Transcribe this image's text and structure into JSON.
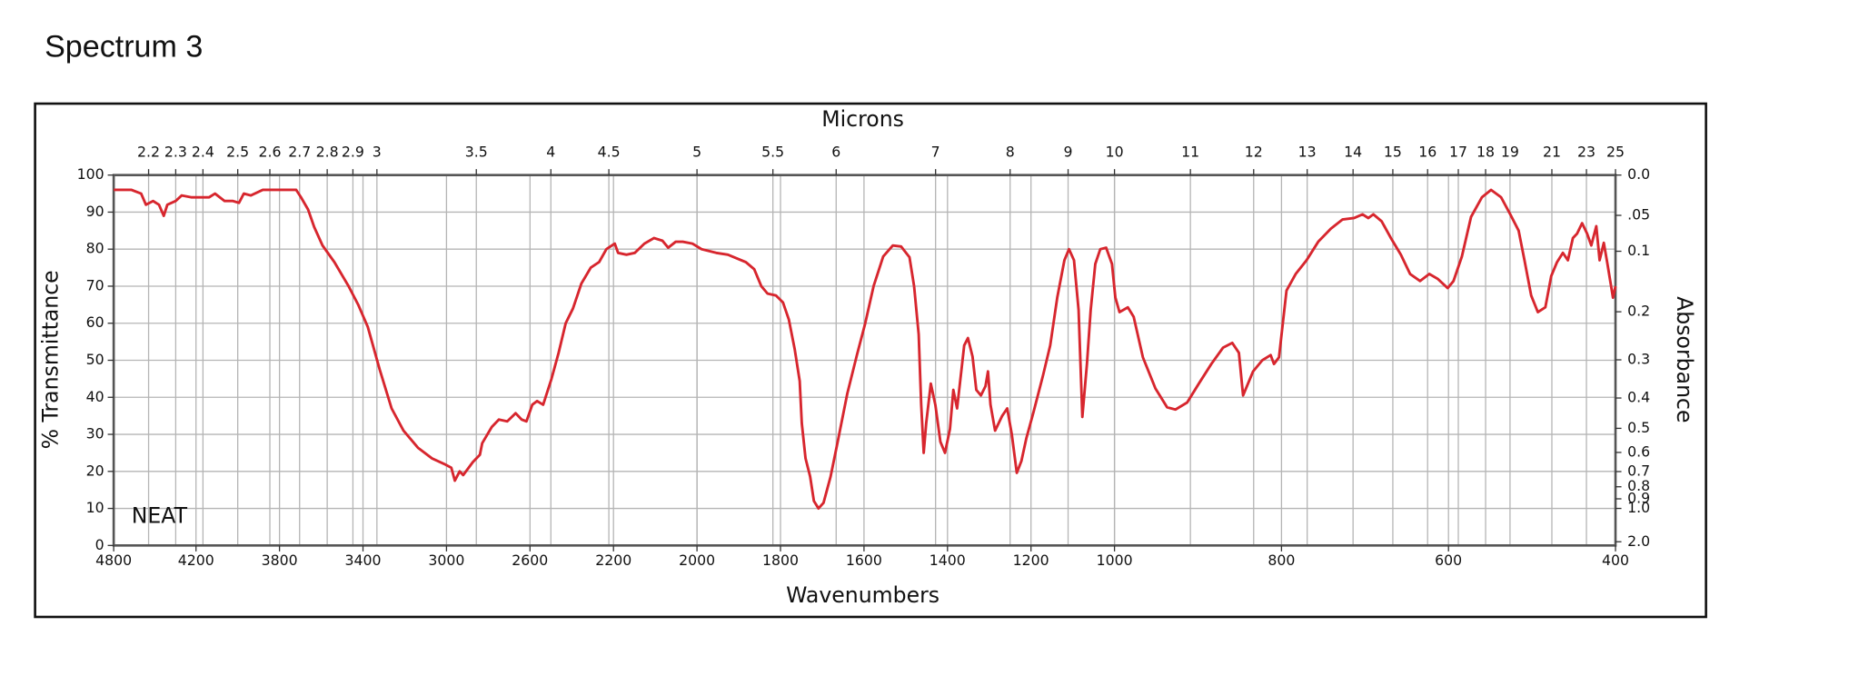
{
  "chart_data": {
    "type": "line",
    "title": "Spectrum 3",
    "annotation": "NEAT",
    "xlabel": "Wavenumbers",
    "x2label": "Microns",
    "ylabel": "% Transmittance",
    "y2label": "Absorbance",
    "xlim": [
      4800,
      400
    ],
    "xscale": "piecewise",
    "xbreaks": [
      4200,
      2200,
      1000
    ],
    "xticks": [
      4800,
      4200,
      3800,
      3400,
      3000,
      2600,
      2200,
      2000,
      1800,
      1600,
      1400,
      1200,
      1000,
      800,
      600,
      400
    ],
    "x2ticks": [
      2.2,
      2.3,
      2.4,
      2.5,
      2.6,
      2.7,
      2.8,
      2.9,
      3,
      3.5,
      4,
      4.5,
      5,
      5.5,
      6,
      7,
      8,
      9,
      10,
      11,
      12,
      13,
      14,
      15,
      16,
      17,
      18,
      19,
      21,
      23,
      25
    ],
    "ylim": [
      0,
      100
    ],
    "yticks": [
      0,
      10,
      20,
      30,
      40,
      50,
      60,
      70,
      80,
      90,
      100
    ],
    "y2scale": "absorbance",
    "y2ticks": [
      {
        "value": 0,
        "label": "0.0"
      },
      {
        "value": 0.05,
        "label": ".05"
      },
      0.1,
      0.2,
      0.3,
      0.4,
      0.5,
      0.6,
      0.7,
      0.8,
      0.9,
      {
        "value": 1,
        "label": "1.0"
      },
      {
        "value": 2,
        "label": "2.0"
      }
    ],
    "grid": true,
    "x": [
      4800,
      4670,
      4600,
      4565,
      4513,
      4470,
      4435,
      4409,
      4348,
      4304,
      4235,
      4137,
      4109,
      4063,
      4023,
      3994,
      3971,
      3937,
      3880,
      3794,
      3720,
      3697,
      3663,
      3634,
      3594,
      3537,
      3469,
      3423,
      3377,
      3320,
      3263,
      3206,
      3137,
      3069,
      3011,
      2977,
      2960,
      2937,
      2920,
      2874,
      2840,
      2829,
      2783,
      2749,
      2709,
      2669,
      2640,
      2617,
      2589,
      2566,
      2537,
      2497,
      2463,
      2429,
      2394,
      2354,
      2309,
      2269,
      2234,
      2197,
      2189,
      2169,
      2149,
      2126,
      2103,
      2083,
      2069,
      2051,
      2034,
      2011,
      1989,
      1954,
      1926,
      1883,
      1863,
      1846,
      1831,
      1811,
      1794,
      1780,
      1766,
      1754,
      1749,
      1740,
      1729,
      1720,
      1709,
      1697,
      1680,
      1663,
      1640,
      1617,
      1597,
      1577,
      1554,
      1531,
      1511,
      1491,
      1480,
      1469,
      1463,
      1457,
      1451,
      1440,
      1429,
      1417,
      1406,
      1394,
      1386,
      1377,
      1369,
      1360,
      1351,
      1340,
      1331,
      1320,
      1309,
      1303,
      1297,
      1286,
      1269,
      1257,
      1246,
      1234,
      1223,
      1211,
      1194,
      1171,
      1154,
      1137,
      1120,
      1109,
      1097,
      1086,
      1077,
      1066,
      1057,
      1046,
      1034,
      1020,
      1006,
      999,
      994,
      984,
      977,
      966,
      951,
      937,
      927,
      913,
      899,
      884,
      870,
      859,
      851,
      846,
      834,
      823,
      813,
      809,
      803,
      794,
      783,
      770,
      756,
      741,
      727,
      713,
      703,
      696,
      690,
      680,
      669,
      657,
      646,
      634,
      623,
      613,
      601,
      594,
      584,
      573,
      560,
      549,
      537,
      526,
      516,
      509,
      501,
      493,
      484,
      477,
      470,
      463,
      457,
      451,
      446,
      440,
      434,
      429,
      423,
      419,
      414,
      410,
      403,
      400
    ],
    "series": [
      {
        "color": "#d7262e",
        "values": [
          96,
          96,
          95,
          92,
          93,
          92,
          89,
          92,
          93,
          94.5,
          94,
          94,
          95,
          93,
          93,
          92.5,
          95,
          94.5,
          96,
          96,
          96,
          94,
          90.7,
          86,
          81,
          76.5,
          70,
          65,
          59,
          47.5,
          37,
          31,
          26.4,
          23.5,
          22,
          21,
          17.5,
          20,
          19,
          22.5,
          24.5,
          27.6,
          32,
          34,
          33.5,
          35.7,
          34,
          33.5,
          38,
          39,
          38,
          45,
          52,
          60,
          64,
          70.7,
          75,
          76.5,
          80,
          81.5,
          79,
          78.5,
          79,
          81.5,
          83,
          82.3,
          80.4,
          82,
          82,
          81.5,
          80,
          79,
          78.5,
          76.5,
          74.6,
          70,
          68,
          67.5,
          65.6,
          61,
          53,
          44.4,
          33,
          23.5,
          18.6,
          12,
          10,
          11.5,
          18.6,
          28,
          41,
          51.4,
          60,
          70,
          78,
          81,
          80.7,
          77.8,
          70,
          57,
          38,
          25,
          33,
          43.7,
          37.9,
          28,
          25,
          31.5,
          42,
          37,
          45,
          54,
          56,
          51,
          42,
          40.5,
          43,
          47,
          38,
          31,
          35,
          37,
          30,
          19.6,
          22.8,
          29,
          36,
          46,
          54,
          67,
          77,
          80,
          77,
          63.6,
          34.7,
          49,
          63.6,
          76,
          80,
          80.4,
          76,
          67,
          63,
          64.3,
          61.7,
          50.8,
          42.4,
          37.3,
          36.7,
          38.6,
          43.7,
          49,
          53.4,
          54.7,
          52,
          40.5,
          47,
          50,
          51.4,
          49,
          50.8,
          68.8,
          73.3,
          77,
          82,
          85.5,
          88,
          88.4,
          89.4,
          88.4,
          89.4,
          87.5,
          83,
          78.5,
          73.3,
          71.4,
          73.3,
          72,
          69.5,
          71.4,
          78,
          88.7,
          94,
          96,
          94,
          89.4,
          85,
          77,
          67.5,
          63,
          64.3,
          72.7,
          76.5,
          79,
          77,
          83,
          84.2,
          87,
          84.2,
          81,
          86.2,
          77,
          81.7,
          76.5,
          66.9,
          70
        ]
      }
    ]
  }
}
